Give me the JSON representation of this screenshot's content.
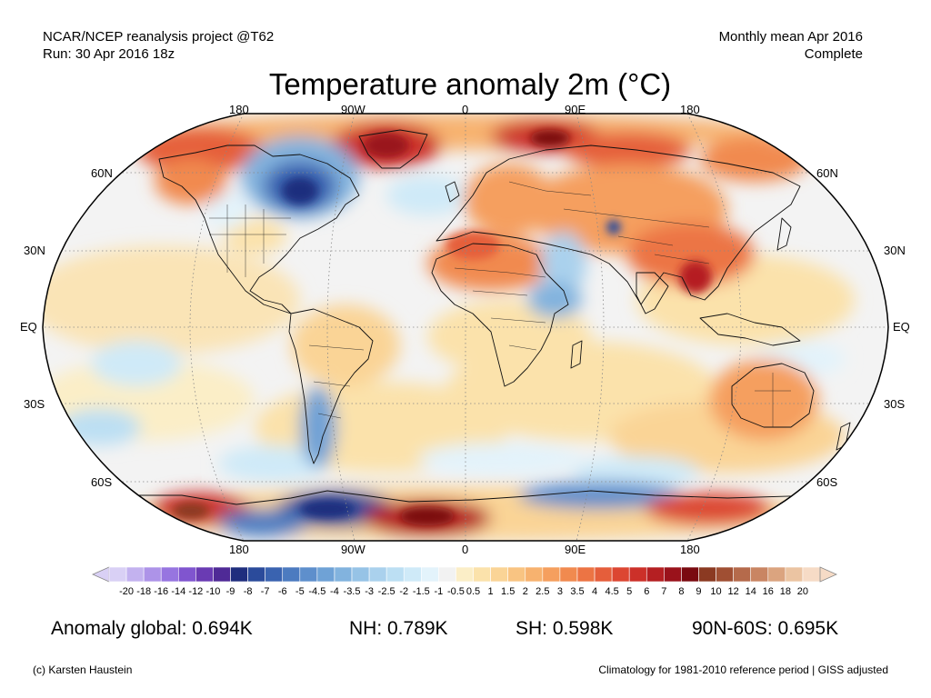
{
  "header": {
    "left_line1": "NCAR/NCEP reanalysis project @T62",
    "left_line2": "Run: 30 Apr 2016 18z",
    "right_line1": "Monthly mean Apr 2016",
    "right_line2": "Complete"
  },
  "title": "Temperature anomaly 2m (°C)",
  "map": {
    "projection": "Robinson",
    "ocean_color": "#f3f3f3",
    "border_color": "#000000",
    "lon_labels": [
      "180",
      "90W",
      "0",
      "90E",
      "180"
    ],
    "lat_labels": [
      "60N",
      "30N",
      "EQ",
      "30S",
      "60S"
    ]
  },
  "colorbar": {
    "ticks": [
      "-20",
      "-18",
      "-16",
      "-14",
      "-12",
      "-10",
      "-9",
      "-8",
      "-7",
      "-6",
      "-5",
      "-4.5",
      "-4",
      "-3.5",
      "-3",
      "-2.5",
      "-2",
      "-1.5",
      "-1",
      "-0.5",
      "0.5",
      "1",
      "1.5",
      "2",
      "2.5",
      "3",
      "3.5",
      "4",
      "4.5",
      "5",
      "6",
      "7",
      "8",
      "9",
      "10",
      "12",
      "14",
      "16",
      "18",
      "20"
    ],
    "colors": [
      "#d9d0f5",
      "#c3b2ef",
      "#ad93e8",
      "#9775e0",
      "#8055cf",
      "#6a3bb3",
      "#4f2a96",
      "#1f2e7e",
      "#2b4b9b",
      "#3a63b0",
      "#4c7bc0",
      "#5e8fcc",
      "#6fa2d6",
      "#82b3de",
      "#96c3e6",
      "#aad1ed",
      "#bcdff3",
      "#cfeaf8",
      "#e3f3fb",
      "#f2f2f2",
      "#fbeec7",
      "#fbe2ab",
      "#fad496",
      "#f9c482",
      "#f7b26f",
      "#f59f5e",
      "#f18a4f",
      "#ec7444",
      "#e55e3b",
      "#dc4632",
      "#cc3029",
      "#b51f22",
      "#9a121b",
      "#7a0a10",
      "#8b3a22",
      "#a04f33",
      "#b56a4b",
      "#c98563",
      "#dba47f",
      "#ebc4a2",
      "#f6dbc6"
    ]
  },
  "stats": {
    "global": "Anomaly global: 0.694K",
    "nh": "NH: 0.789K",
    "sh": "SH: 0.598K",
    "arctic": "90N-60S: 0.695K"
  },
  "footer": {
    "credit": "(c) Karsten Haustein",
    "climatology": "Climatology for 1981-2010 reference period | GISS adjusted"
  }
}
